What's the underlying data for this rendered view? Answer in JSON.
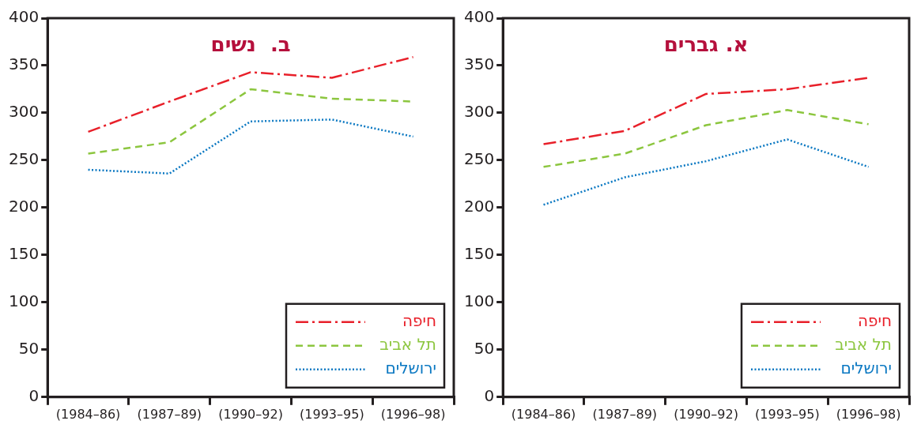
{
  "chart_data": [
    {
      "type": "line",
      "title": "ב.  נשים",
      "categories": [
        "(1984–86)",
        "(1987–89)",
        "(1990–92)",
        "(1993–95)",
        "(1996–98)"
      ],
      "series": [
        {
          "name": "חיפה",
          "color": "#e8202a",
          "line_style": "dashdot",
          "values": [
            280,
            312,
            343,
            337,
            359
          ]
        },
        {
          "name": "תל אביב",
          "color": "#8cc63f",
          "line_style": "dashed",
          "values": [
            257,
            269,
            325,
            315,
            312
          ]
        },
        {
          "name": "ירושלים",
          "color": "#0a78c2",
          "line_style": "dotted",
          "values": [
            240,
            236,
            291,
            293,
            275
          ]
        }
      ],
      "ylim": [
        0,
        400
      ],
      "yticks": [
        0,
        50,
        100,
        150,
        200,
        250,
        300,
        350,
        400
      ],
      "grid": false,
      "legend": "bottom right",
      "marker": "none"
    },
    {
      "type": "line",
      "title": "א. גברים",
      "categories": [
        "(1984–86)",
        "(1987–89)",
        "(1990–92)",
        "(1993–95)",
        "(1996–98)"
      ],
      "series": [
        {
          "name": "חיפה",
          "color": "#e8202a",
          "line_style": "dashdot",
          "values": [
            267,
            281,
            320,
            325,
            337
          ]
        },
        {
          "name": "תל אביב",
          "color": "#8cc63f",
          "line_style": "dashed",
          "values": [
            243,
            257,
            287,
            303,
            288
          ]
        },
        {
          "name": "ירושלים",
          "color": "#0a78c2",
          "line_style": "dotted",
          "values": [
            203,
            232,
            249,
            272,
            243
          ]
        }
      ],
      "ylim": [
        0,
        400
      ],
      "yticks": [
        0,
        50,
        100,
        150,
        200,
        250,
        300,
        350,
        400
      ],
      "grid": false,
      "legend": "bottom right",
      "marker": "none"
    }
  ]
}
